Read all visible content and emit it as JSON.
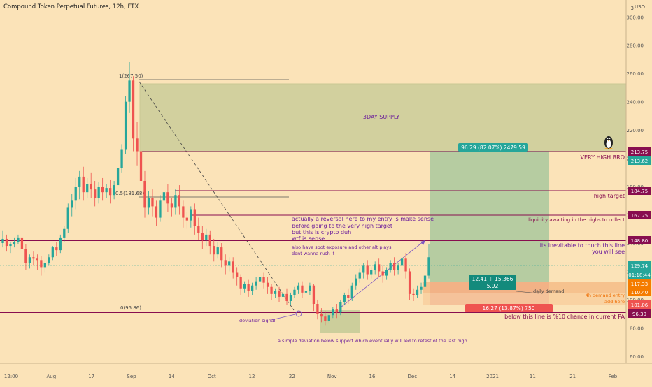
{
  "header": {
    "title": "Compound Token Perpetual Futures, 12h, FTX",
    "currency": "USD",
    "scale_value": "3"
  },
  "chart_data": {
    "type": "candlestick",
    "title": "Compound Token Perpetual Futures, 12h, FTX",
    "ylabel": "USD",
    "ylim": [
      55,
      312
    ],
    "y_ticks": [
      60,
      80,
      100,
      120,
      140,
      160,
      180,
      200,
      220,
      240,
      260,
      280,
      300
    ],
    "y_tick_labels": [
      "60.00",
      "80.00",
      "100.00",
      "120.00",
      "140.00",
      "160.00",
      "180.00",
      "200.00",
      "220.00",
      "240.00",
      "260.00",
      "280.00",
      "300.00"
    ],
    "x_ticks": [
      "12:00",
      "Aug",
      "17",
      "Sep",
      "14",
      "Oct",
      "12",
      "22",
      "Nov",
      "16",
      "Dec",
      "14",
      "2021",
      "11",
      "21",
      "Feb"
    ],
    "candles": [
      {
        "o": 140,
        "h": 149,
        "c": 143,
        "l": 137
      },
      {
        "o": 143,
        "h": 146,
        "c": 138,
        "l": 134
      },
      {
        "o": 138,
        "h": 141,
        "c": 139,
        "l": 133
      },
      {
        "o": 139,
        "h": 144,
        "c": 141,
        "l": 137
      },
      {
        "o": 141,
        "h": 146,
        "c": 144,
        "l": 139
      },
      {
        "o": 144,
        "h": 146,
        "c": 136,
        "l": 128
      },
      {
        "o": 136,
        "h": 139,
        "c": 126,
        "l": 121
      },
      {
        "o": 126,
        "h": 132,
        "c": 130,
        "l": 122
      },
      {
        "o": 130,
        "h": 134,
        "c": 129,
        "l": 124
      },
      {
        "o": 129,
        "h": 132,
        "c": 128,
        "l": 121
      },
      {
        "o": 128,
        "h": 131,
        "c": 123,
        "l": 117
      },
      {
        "o": 123,
        "h": 128,
        "c": 126,
        "l": 119
      },
      {
        "o": 126,
        "h": 132,
        "c": 130,
        "l": 124
      },
      {
        "o": 130,
        "h": 138,
        "c": 137,
        "l": 128
      },
      {
        "o": 137,
        "h": 141,
        "c": 135,
        "l": 131
      },
      {
        "o": 135,
        "h": 146,
        "c": 144,
        "l": 133
      },
      {
        "o": 144,
        "h": 152,
        "c": 150,
        "l": 141
      },
      {
        "o": 150,
        "h": 168,
        "c": 165,
        "l": 147
      },
      {
        "o": 165,
        "h": 175,
        "c": 170,
        "l": 159
      },
      {
        "o": 170,
        "h": 186,
        "c": 180,
        "l": 164
      },
      {
        "o": 180,
        "h": 191,
        "c": 187,
        "l": 171
      },
      {
        "o": 187,
        "h": 194,
        "c": 176,
        "l": 170
      },
      {
        "o": 176,
        "h": 186,
        "c": 182,
        "l": 172
      },
      {
        "o": 182,
        "h": 190,
        "c": 178,
        "l": 172
      },
      {
        "o": 178,
        "h": 184,
        "c": 172,
        "l": 166
      },
      {
        "o": 172,
        "h": 183,
        "c": 180,
        "l": 168
      },
      {
        "o": 180,
        "h": 186,
        "c": 176,
        "l": 170
      },
      {
        "o": 176,
        "h": 182,
        "c": 179,
        "l": 172
      },
      {
        "o": 179,
        "h": 185,
        "c": 174,
        "l": 168
      },
      {
        "o": 174,
        "h": 184,
        "c": 181,
        "l": 171
      },
      {
        "o": 181,
        "h": 195,
        "c": 193,
        "l": 178
      },
      {
        "o": 193,
        "h": 210,
        "c": 206,
        "l": 190
      },
      {
        "o": 206,
        "h": 244,
        "c": 240,
        "l": 203
      },
      {
        "o": 240,
        "h": 268,
        "c": 255,
        "l": 232
      },
      {
        "o": 255,
        "h": 258,
        "c": 214,
        "l": 205
      },
      {
        "o": 214,
        "h": 226,
        "c": 205,
        "l": 195
      },
      {
        "o": 205,
        "h": 209,
        "c": 184,
        "l": 178
      },
      {
        "o": 184,
        "h": 191,
        "c": 165,
        "l": 158
      },
      {
        "o": 165,
        "h": 177,
        "c": 172,
        "l": 160
      },
      {
        "o": 172,
        "h": 178,
        "c": 166,
        "l": 159
      },
      {
        "o": 166,
        "h": 170,
        "c": 158,
        "l": 152
      },
      {
        "o": 158,
        "h": 174,
        "c": 170,
        "l": 155
      },
      {
        "o": 170,
        "h": 183,
        "c": 176,
        "l": 166
      },
      {
        "o": 176,
        "h": 182,
        "c": 168,
        "l": 162
      },
      {
        "o": 168,
        "h": 172,
        "c": 165,
        "l": 159
      },
      {
        "o": 165,
        "h": 178,
        "c": 174,
        "l": 160
      },
      {
        "o": 174,
        "h": 181,
        "c": 166,
        "l": 160
      },
      {
        "o": 166,
        "h": 170,
        "c": 158,
        "l": 151
      },
      {
        "o": 158,
        "h": 162,
        "c": 156,
        "l": 150
      },
      {
        "o": 156,
        "h": 166,
        "c": 164,
        "l": 151
      },
      {
        "o": 164,
        "h": 168,
        "c": 152,
        "l": 146
      },
      {
        "o": 152,
        "h": 158,
        "c": 147,
        "l": 142
      },
      {
        "o": 147,
        "h": 152,
        "c": 142,
        "l": 136
      },
      {
        "o": 142,
        "h": 150,
        "c": 146,
        "l": 138
      },
      {
        "o": 146,
        "h": 149,
        "c": 138,
        "l": 132
      },
      {
        "o": 138,
        "h": 143,
        "c": 132,
        "l": 127
      },
      {
        "o": 132,
        "h": 141,
        "c": 137,
        "l": 129
      },
      {
        "o": 137,
        "h": 140,
        "c": 128,
        "l": 123
      },
      {
        "o": 128,
        "h": 132,
        "c": 124,
        "l": 118
      },
      {
        "o": 124,
        "h": 130,
        "c": 127,
        "l": 120
      },
      {
        "o": 127,
        "h": 130,
        "c": 119,
        "l": 115
      },
      {
        "o": 119,
        "h": 123,
        "c": 116,
        "l": 110
      },
      {
        "o": 116,
        "h": 118,
        "c": 108,
        "l": 103
      },
      {
        "o": 108,
        "h": 113,
        "c": 111,
        "l": 105
      },
      {
        "o": 111,
        "h": 114,
        "c": 106,
        "l": 102
      },
      {
        "o": 106,
        "h": 112,
        "c": 110,
        "l": 103
      },
      {
        "o": 110,
        "h": 116,
        "c": 113,
        "l": 107
      },
      {
        "o": 113,
        "h": 118,
        "c": 116,
        "l": 110
      },
      {
        "o": 116,
        "h": 119,
        "c": 112,
        "l": 108
      },
      {
        "o": 112,
        "h": 116,
        "c": 109,
        "l": 104
      },
      {
        "o": 109,
        "h": 111,
        "c": 104,
        "l": 100
      },
      {
        "o": 104,
        "h": 108,
        "c": 106,
        "l": 101
      },
      {
        "o": 106,
        "h": 109,
        "c": 102,
        "l": 98
      },
      {
        "o": 102,
        "h": 106,
        "c": 104,
        "l": 97
      },
      {
        "o": 104,
        "h": 108,
        "c": 99,
        "l": 96
      },
      {
        "o": 99,
        "h": 105,
        "c": 103,
        "l": 96
      },
      {
        "o": 103,
        "h": 109,
        "c": 107,
        "l": 101
      },
      {
        "o": 107,
        "h": 112,
        "c": 110,
        "l": 104
      },
      {
        "o": 110,
        "h": 113,
        "c": 105,
        "l": 101
      },
      {
        "o": 105,
        "h": 109,
        "c": 106,
        "l": 100
      },
      {
        "o": 106,
        "h": 112,
        "c": 110,
        "l": 103
      },
      {
        "o": 110,
        "h": 111,
        "c": 97,
        "l": 92
      },
      {
        "o": 97,
        "h": 100,
        "c": 90,
        "l": 86
      },
      {
        "o": 90,
        "h": 94,
        "c": 88,
        "l": 84
      },
      {
        "o": 88,
        "h": 92,
        "c": 85,
        "l": 82
      },
      {
        "o": 85,
        "h": 90,
        "c": 89,
        "l": 83
      },
      {
        "o": 89,
        "h": 95,
        "c": 93,
        "l": 87
      },
      {
        "o": 93,
        "h": 97,
        "c": 91,
        "l": 87
      },
      {
        "o": 91,
        "h": 100,
        "c": 98,
        "l": 89
      },
      {
        "o": 98,
        "h": 105,
        "c": 103,
        "l": 96
      },
      {
        "o": 103,
        "h": 108,
        "c": 101,
        "l": 97
      },
      {
        "o": 101,
        "h": 112,
        "c": 110,
        "l": 99
      },
      {
        "o": 110,
        "h": 118,
        "c": 115,
        "l": 107
      },
      {
        "o": 115,
        "h": 122,
        "c": 119,
        "l": 112
      },
      {
        "o": 119,
        "h": 126,
        "c": 124,
        "l": 115
      },
      {
        "o": 124,
        "h": 128,
        "c": 118,
        "l": 114
      },
      {
        "o": 118,
        "h": 123,
        "c": 121,
        "l": 115
      },
      {
        "o": 121,
        "h": 127,
        "c": 125,
        "l": 118
      },
      {
        "o": 125,
        "h": 129,
        "c": 120,
        "l": 116
      },
      {
        "o": 120,
        "h": 124,
        "c": 117,
        "l": 112
      },
      {
        "o": 117,
        "h": 123,
        "c": 121,
        "l": 114
      },
      {
        "o": 121,
        "h": 128,
        "c": 126,
        "l": 119
      },
      {
        "o": 126,
        "h": 130,
        "c": 121,
        "l": 117
      },
      {
        "o": 121,
        "h": 126,
        "c": 124,
        "l": 118
      },
      {
        "o": 124,
        "h": 131,
        "c": 129,
        "l": 122
      },
      {
        "o": 129,
        "h": 133,
        "c": 120,
        "l": 115
      },
      {
        "o": 120,
        "h": 122,
        "c": 104,
        "l": 100
      },
      {
        "o": 104,
        "h": 108,
        "c": 103,
        "l": 99
      },
      {
        "o": 103,
        "h": 110,
        "c": 107,
        "l": 101
      },
      {
        "o": 107,
        "h": 112,
        "c": 109,
        "l": 104
      },
      {
        "o": 109,
        "h": 120,
        "c": 117,
        "l": 106
      },
      {
        "o": 117,
        "h": 139,
        "c": 130,
        "l": 115
      }
    ]
  },
  "drawings": {
    "fib_top": "1(267.50)",
    "fib_mid": "0.5(181.68)",
    "fib_bottom": "0(95.86)",
    "supply_label": "3DAY SUPPLY",
    "projection_label": "96.29 (82.07%) 2479.59",
    "risk_label": "16.27 (13.87%) 750",
    "rr_line1": "12.41 ÷ 15.366",
    "rr_line2": "5.92",
    "daily_demand": "daily demand",
    "demand_4h_line1": "4h demand entry",
    "demand_4h_line2": "add here",
    "deviation_signal": "deviation signal",
    "deviation_note": "a simple deviation below support which eventually will led to retest of the last high",
    "very_high": "VERY HIGH BRO",
    "high_target": "high target",
    "liquidity": "liquidity awaiting in the highs to collect",
    "inevitable_1": "its inevitable to touch this line",
    "inevitable_2": "you will see",
    "below_line": "below this line is %10 chance in current PA",
    "reversal_1": "actually a reversal here to my entry is make sense",
    "reversal_2": "before going to the very high target",
    "reversal_3": "but this is crypto duh",
    "reversal_4": "wtf is sense",
    "spot_1": "also have spot exposure and other alt plays",
    "spot_2": "dont wanna rush it"
  },
  "price_tags": [
    {
      "label": "213.75",
      "color": "#880e4f"
    },
    {
      "label": "213.62",
      "color": "#26a69a"
    },
    {
      "label": "184.75",
      "color": "#880e4f"
    },
    {
      "label": "167.25",
      "color": "#880e4f"
    },
    {
      "label": "148.80",
      "color": "#880e4f"
    },
    {
      "label": "129.74",
      "color": "#26a69a"
    },
    {
      "label": "01:18:44",
      "color": "#26a69a"
    },
    {
      "label": "117.33",
      "color": "#f57c00"
    },
    {
      "label": "110.40",
      "color": "#f57c00"
    },
    {
      "label": "101.06",
      "color": "#ef5350"
    },
    {
      "label": "96.30",
      "color": "#880e4f"
    }
  ],
  "colors": {
    "background": "#fbe3b8",
    "up": "#26a69a",
    "down": "#ef5350",
    "level": "#880e4f",
    "annotation": "#6a1b9a"
  }
}
